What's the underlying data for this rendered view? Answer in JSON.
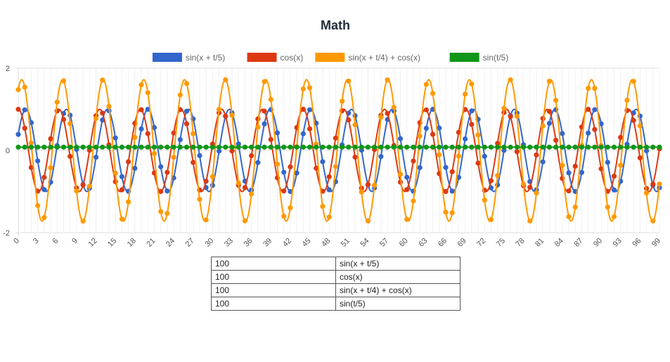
{
  "chart_data": {
    "type": "line",
    "title": "Math",
    "x": {
      "start": 0,
      "end": 99,
      "step": 1
    },
    "x_tick_labels": [
      "0",
      "3",
      "6",
      "9",
      "12",
      "15",
      "18",
      "21",
      "24",
      "27",
      "30",
      "33",
      "36",
      "39",
      "42",
      "45",
      "48",
      "51",
      "54",
      "57",
      "60",
      "63",
      "66",
      "69",
      "72",
      "75",
      "78",
      "81",
      "84",
      "87",
      "90",
      "93",
      "96",
      "99"
    ],
    "ylim": [
      -2,
      2
    ],
    "y_tick_labels": [
      "2",
      "0",
      "-2"
    ],
    "legend_position": "top",
    "grid": true,
    "series": [
      {
        "name": "sin(x + t/5)",
        "color": "#3366cc",
        "expr": "sin(x + t/5)",
        "t": 0.4
      },
      {
        "name": "cos(x)",
        "color": "#dc3912",
        "expr": "cos(x)"
      },
      {
        "name": "sin(x + t/4) + cos(x)",
        "color": "#ff9900",
        "expr": "sin(x + t/4) + cos(x)",
        "t": 0.5
      },
      {
        "name": "sin(t/5)",
        "color": "#109618",
        "expr": "sin(t/5)",
        "value": 0.08
      }
    ]
  },
  "table": {
    "rows": [
      {
        "count": "100",
        "expr": "sin(x + t/5)"
      },
      {
        "count": "100",
        "expr": "cos(x)"
      },
      {
        "count": "100",
        "expr": "sin(x + t/4) + cos(x)"
      },
      {
        "count": "100",
        "expr": "sin(t/5)"
      }
    ]
  }
}
